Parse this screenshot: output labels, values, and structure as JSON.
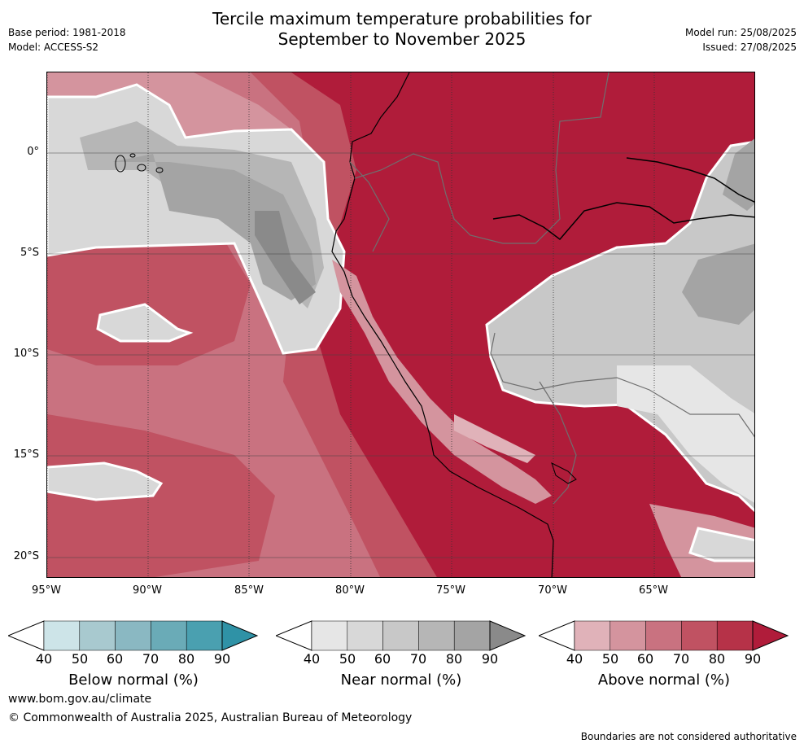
{
  "header": {
    "title_line1": "Tercile maximum temperature probabilities for",
    "title_line2": "September to November 2025",
    "base_period": "Base period: 1981-2018",
    "model": "Model: ACCESS-S2",
    "model_run": "Model run: 25/08/2025",
    "issued": "Issued: 27/08/2025"
  },
  "map": {
    "lat_labels": [
      "0°",
      "5°S",
      "10°S",
      "15°S",
      "20°S"
    ],
    "lon_labels": [
      "95°W",
      "90°W",
      "85°W",
      "80°W",
      "75°W",
      "70°W",
      "65°W"
    ],
    "colors": {
      "above": [
        "#e0b2b9",
        "#d4949e",
        "#c97280",
        "#c05262",
        "#b63248",
        "#b01c3a"
      ],
      "near": [
        "#e6e6e6",
        "#d8d8d8",
        "#c8c8c8",
        "#b6b6b6",
        "#a4a4a4",
        "#8a8a8a"
      ],
      "below": [
        "#cde4e8",
        "#a8c9cf",
        "#8ab8c2",
        "#6aabb7",
        "#4aa0b0",
        "#2f92a6"
      ]
    }
  },
  "legends": [
    {
      "label": "Below normal (%)",
      "ticks": [
        "40",
        "50",
        "60",
        "70",
        "80",
        "90"
      ],
      "key": "below"
    },
    {
      "label": "Near normal (%)",
      "ticks": [
        "40",
        "50",
        "60",
        "70",
        "80",
        "90"
      ],
      "key": "near"
    },
    {
      "label": "Above normal (%)",
      "ticks": [
        "40",
        "50",
        "60",
        "70",
        "80",
        "90"
      ],
      "key": "above"
    }
  ],
  "footer": {
    "url": "www.bom.gov.au/climate",
    "copyright": "© Commonwealth of Australia 2025, Australian Bureau of Meteorology",
    "note": "Boundaries are not considered authoritative"
  }
}
